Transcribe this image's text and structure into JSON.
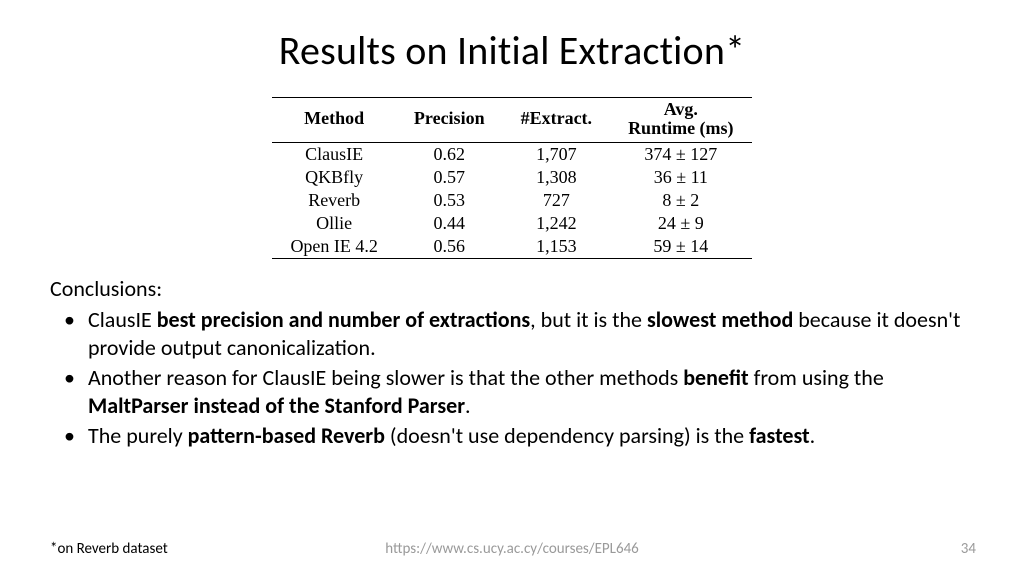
{
  "title": "Results on Initial Extraction*",
  "table": {
    "columns": [
      "Method",
      "Precision",
      "#Extract.",
      "Avg. Runtime (ms)"
    ],
    "col_runtime_line1": "Avg.",
    "col_runtime_line2": "Runtime (ms)",
    "rows": [
      {
        "method": "ClausIE",
        "precision": "0.62",
        "extract": "1,707",
        "runtime": "374 ± 127"
      },
      {
        "method": "QKBfly",
        "precision": "0.57",
        "extract": "1,308",
        "runtime": "36 ± 11"
      },
      {
        "method": "Reverb",
        "precision": "0.53",
        "extract": "727",
        "runtime": "8 ± 2"
      },
      {
        "method": "Ollie",
        "precision": "0.44",
        "extract": "1,242",
        "runtime": "24 ± 9"
      },
      {
        "method": "Open IE 4.2",
        "precision": "0.56",
        "extract": "1,153",
        "runtime": "59 ± 14"
      }
    ],
    "header_fontsize": 18,
    "cell_fontsize": 18,
    "font_family": "Times New Roman",
    "border_color": "#000000",
    "background_color": "#ffffff"
  },
  "conclusions_label": "Conclusions:",
  "bullets": {
    "b1": {
      "p1": "ClausIE ",
      "bold1": "best precision and number of extractions",
      "p2": ", but it is the ",
      "bold2": "slowest method",
      "p3": " because it doesn't provide output canonicalization."
    },
    "b2": {
      "p1": "Another reason for ClausIE being slower is that the other methods ",
      "bold1": "benefit",
      "p2": " from using the ",
      "bold2": "MaltParser instead of the Stanford Parser",
      "p3": "."
    },
    "b3": {
      "p1": "The purely ",
      "bold1": "pattern-based Reverb",
      "p2": " (doesn't use dependency parsing) is the ",
      "bold2": "fastest",
      "p3": "."
    }
  },
  "footnote": "*on Reverb dataset",
  "url": "https://www.cs.ucy.ac.cy/courses/EPL646",
  "page_number": "34",
  "colors": {
    "text": "#000000",
    "muted": "#9a9a9a",
    "background": "#ffffff"
  }
}
